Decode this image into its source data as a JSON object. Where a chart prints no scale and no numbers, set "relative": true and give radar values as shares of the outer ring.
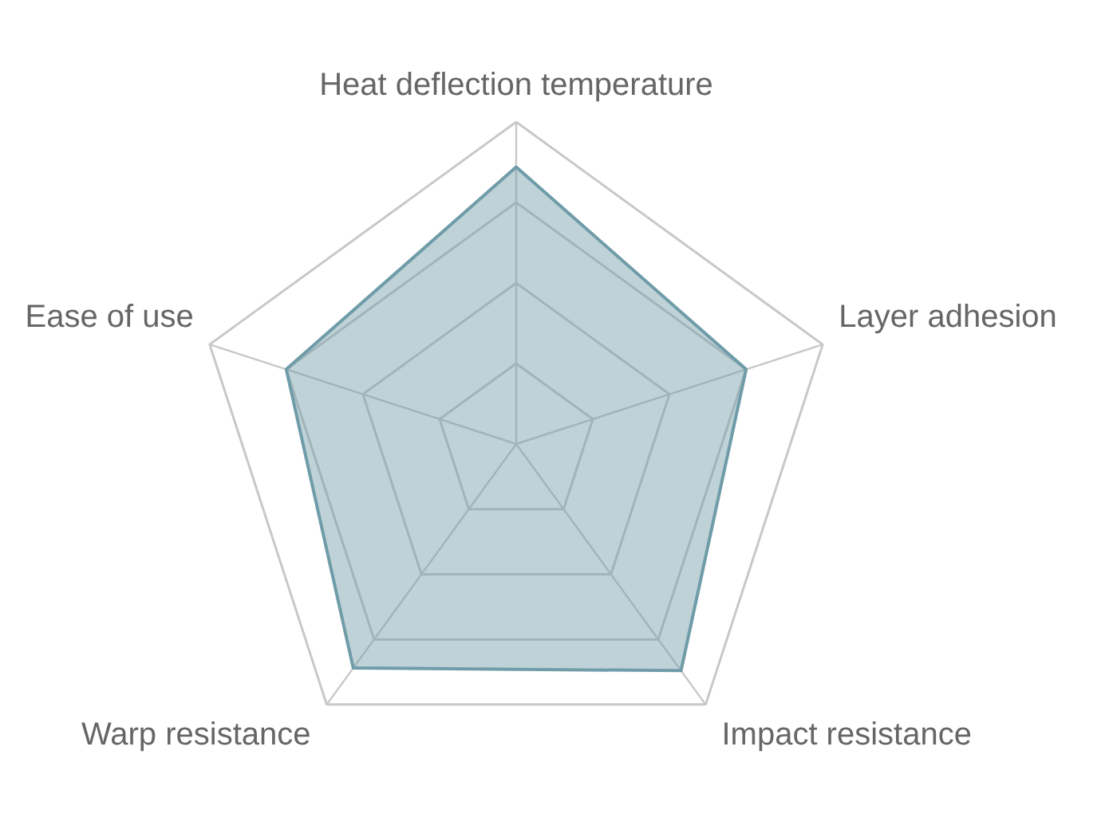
{
  "chart_data": {
    "type": "radar",
    "relative": true,
    "grid": true,
    "categories": [
      "Heat deflection temperature",
      "Layer adhesion",
      "Impact resistance",
      "Warp resistance",
      "Ease of use"
    ],
    "series": [
      {
        "color": "#6f9ca8",
        "values": [
          0.86,
          0.75,
          0.87,
          0.86,
          0.75
        ]
      }
    ]
  }
}
